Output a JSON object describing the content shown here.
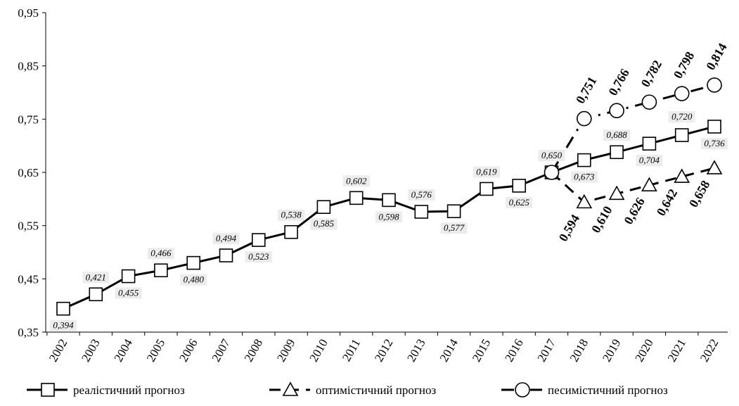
{
  "chart_data": {
    "type": "line",
    "title": "",
    "xlabel": "",
    "ylabel": "",
    "ylim": [
      0.35,
      0.95
    ],
    "yticks": [
      "0,35",
      "0,45",
      "0,55",
      "0,65",
      "0,75",
      "0,85",
      "0,95"
    ],
    "x": [
      "2002",
      "2003",
      "2004",
      "2005",
      "2006",
      "2007",
      "2008",
      "2009",
      "2010",
      "2011",
      "2012",
      "2013",
      "2014",
      "2015",
      "2016",
      "2017",
      "2018",
      "2019",
      "2020",
      "2021",
      "2022"
    ],
    "grid": false,
    "legend_position": "bottom",
    "series": [
      {
        "name": "реалістичний прогноз",
        "marker": "square",
        "line": "solid",
        "x": [
          "2002",
          "2003",
          "2004",
          "2005",
          "2006",
          "2007",
          "2008",
          "2009",
          "2010",
          "2011",
          "2012",
          "2013",
          "2014",
          "2015",
          "2016",
          "2017",
          "2018",
          "2019",
          "2020",
          "2021",
          "2022"
        ],
        "values": [
          0.394,
          0.421,
          0.455,
          0.466,
          0.48,
          0.494,
          0.523,
          0.538,
          0.585,
          0.602,
          0.598,
          0.576,
          0.577,
          0.619,
          0.625,
          0.65,
          0.673,
          0.688,
          0.704,
          0.72,
          0.736
        ],
        "labels": [
          "0,394",
          "0,421",
          "0,455",
          "0,466",
          "0,480",
          "0,494",
          "0,523",
          "0,538",
          "0,585",
          "0,602",
          "0,598",
          "0,576",
          "0,577",
          "0,619",
          "0,625",
          "0,650",
          "0,673",
          "0,688",
          "0,704",
          "0,720",
          "0,736"
        ]
      },
      {
        "name": "оптимістичний прогноз",
        "marker": "triangle",
        "line": "dashed",
        "x": [
          "2017",
          "2018",
          "2019",
          "2020",
          "2021",
          "2022"
        ],
        "values": [
          0.65,
          0.594,
          0.61,
          0.626,
          0.642,
          0.658
        ],
        "labels": [
          "",
          "0,594",
          "0,610",
          "0,626",
          "0,642",
          "0,658"
        ]
      },
      {
        "name": "песимістичний прогноз",
        "marker": "circle",
        "line": "dashdot",
        "x": [
          "2017",
          "2018",
          "2019",
          "2020",
          "2021",
          "2022"
        ],
        "values": [
          0.65,
          0.751,
          0.766,
          0.782,
          0.798,
          0.814
        ],
        "labels": [
          "",
          "0,751",
          "0,766",
          "0,782",
          "0,798",
          "0,814"
        ]
      }
    ]
  }
}
